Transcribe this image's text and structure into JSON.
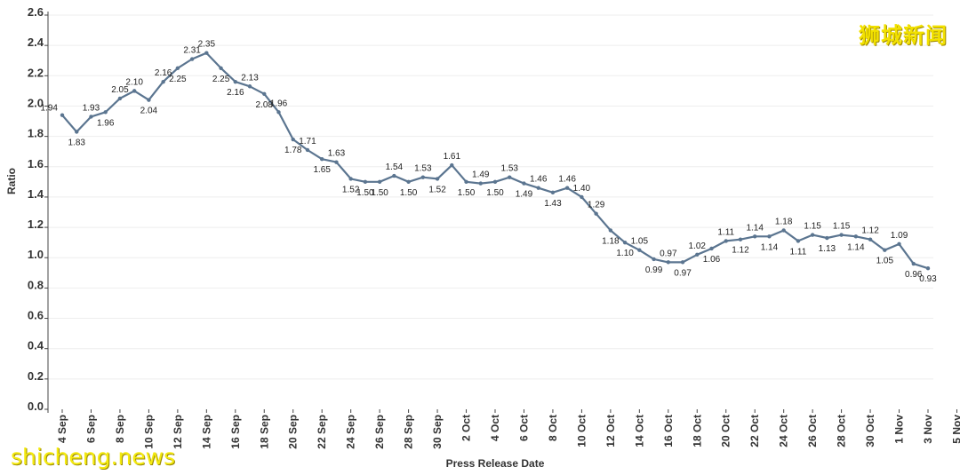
{
  "watermark": {
    "top_right": "狮城新闻",
    "bottom_left": "shicheng.news"
  },
  "colors": {
    "line": "#5b7590",
    "grid": "#eeeeee",
    "watermark": "#f2e100"
  },
  "chart_data": {
    "type": "line",
    "title": "",
    "xlabel": "Press Release Date",
    "ylabel": "Ratio",
    "ylim": [
      0,
      2.6
    ],
    "yticks": [
      "0.0",
      "0.2",
      "0.4",
      "0.6",
      "0.8",
      "1.0",
      "1.2",
      "1.4",
      "1.6",
      "1.8",
      "2.0",
      "2.2",
      "2.4",
      "2.6"
    ],
    "xticks": [
      "4 Sep",
      "6 Sep",
      "8 Sep",
      "10 Sep",
      "12 Sep",
      "14 Sep",
      "16 Sep",
      "18 Sep",
      "20 Sep",
      "22 Sep",
      "24 Sep",
      "26 Sep",
      "28 Sep",
      "30 Sep",
      "2 Oct",
      "4 Oct",
      "6 Oct",
      "8 Oct",
      "10 Oct",
      "12 Oct",
      "14 Oct",
      "16 Oct",
      "18 Oct",
      "20 Oct",
      "22 Oct",
      "24 Oct",
      "26 Oct",
      "28 Oct",
      "30 Oct",
      "1 Nov",
      "3 Nov",
      "5 Nov"
    ],
    "series": [
      {
        "name": "Ratio",
        "values": [
          1.94,
          1.83,
          1.93,
          1.96,
          2.05,
          2.1,
          2.04,
          2.16,
          2.25,
          2.31,
          2.35,
          2.25,
          2.16,
          2.13,
          2.08,
          1.96,
          1.78,
          1.71,
          1.65,
          1.63,
          1.52,
          1.5,
          1.5,
          1.54,
          1.5,
          1.53,
          1.52,
          1.61,
          1.5,
          1.49,
          1.5,
          1.53,
          1.49,
          1.46,
          1.43,
          1.46,
          1.4,
          1.29,
          1.18,
          1.1,
          1.05,
          0.99,
          0.97,
          0.97,
          1.02,
          1.06,
          1.11,
          1.12,
          1.14,
          1.14,
          1.18,
          1.11,
          1.15,
          1.13,
          1.15,
          1.14,
          1.12,
          1.05,
          1.09,
          0.96,
          0.93
        ],
        "label_pos": [
          "L",
          "B",
          "T",
          "B",
          "T",
          "T",
          "B",
          "T",
          "B",
          "T",
          "T",
          "B",
          "B",
          "T",
          "B",
          "T",
          "B",
          "T",
          "B",
          "T",
          "B",
          "B",
          "B",
          "T",
          "B",
          "T",
          "B",
          "T",
          "B",
          "T",
          "B",
          "T",
          "B",
          "T",
          "B",
          "T",
          "T",
          "T",
          "B",
          "B",
          "T",
          "B",
          "T",
          "B",
          "T",
          "B",
          "T",
          "B",
          "T",
          "B",
          "T",
          "B",
          "T",
          "B",
          "T",
          "B",
          "T",
          "B",
          "T",
          "B",
          "B"
        ],
        "labels": [
          "1.94",
          "1.83",
          "1.93",
          "1.96",
          "2.05",
          "2.10",
          "2.04",
          "2.16",
          "2.25",
          "2.31",
          "2.35",
          "2.25",
          "2.16",
          "2.13",
          "2.08",
          "1.96",
          "1.78",
          "1.71",
          "1.65",
          "1.63",
          "1.52",
          "1.50",
          "1.50",
          "1.54",
          "1.50",
          "1.53",
          "1.52",
          "1.61",
          "1.50",
          "1.49",
          "1.50",
          "1.53",
          "1.49",
          "1.46",
          "1.43",
          "1.46",
          "1.40",
          "1.29",
          "1.18",
          "1.10",
          "1.05",
          "0.99",
          "0.97",
          "0.97",
          "1.02",
          "1.06",
          "1.11",
          "1.12",
          "1.14",
          "1.14",
          "1.18",
          "1.11",
          "1.15",
          "1.13",
          "1.15",
          "1.14",
          "1.12",
          "1.05",
          "1.09",
          "0.96",
          "0.93"
        ]
      }
    ]
  }
}
